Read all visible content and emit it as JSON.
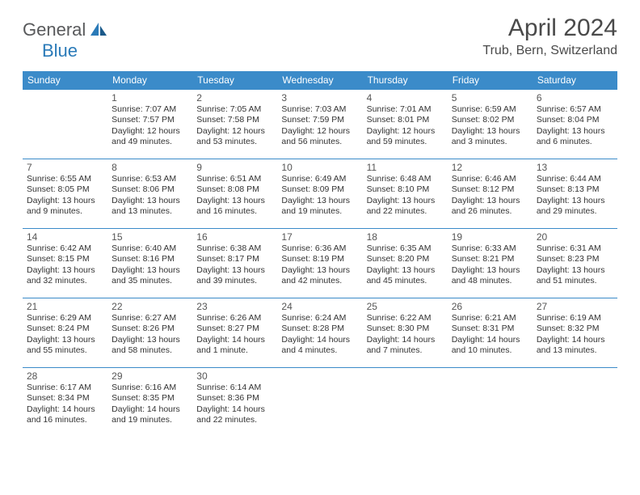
{
  "brand": {
    "part1": "General",
    "part2": "Blue"
  },
  "title": "April 2024",
  "location": "Trub, Bern, Switzerland",
  "colors": {
    "header_bg": "#3b8bc9",
    "header_text": "#ffffff",
    "border": "#3b8bc9",
    "text": "#333333",
    "title": "#4a4a4a",
    "brand_gray": "#58595b",
    "brand_blue": "#2a7ab8"
  },
  "day_headers": [
    "Sunday",
    "Monday",
    "Tuesday",
    "Wednesday",
    "Thursday",
    "Friday",
    "Saturday"
  ],
  "weeks": [
    [
      {
        "n": "",
        "lines": []
      },
      {
        "n": "1",
        "lines": [
          "Sunrise: 7:07 AM",
          "Sunset: 7:57 PM",
          "Daylight: 12 hours",
          "and 49 minutes."
        ]
      },
      {
        "n": "2",
        "lines": [
          "Sunrise: 7:05 AM",
          "Sunset: 7:58 PM",
          "Daylight: 12 hours",
          "and 53 minutes."
        ]
      },
      {
        "n": "3",
        "lines": [
          "Sunrise: 7:03 AM",
          "Sunset: 7:59 PM",
          "Daylight: 12 hours",
          "and 56 minutes."
        ]
      },
      {
        "n": "4",
        "lines": [
          "Sunrise: 7:01 AM",
          "Sunset: 8:01 PM",
          "Daylight: 12 hours",
          "and 59 minutes."
        ]
      },
      {
        "n": "5",
        "lines": [
          "Sunrise: 6:59 AM",
          "Sunset: 8:02 PM",
          "Daylight: 13 hours",
          "and 3 minutes."
        ]
      },
      {
        "n": "6",
        "lines": [
          "Sunrise: 6:57 AM",
          "Sunset: 8:04 PM",
          "Daylight: 13 hours",
          "and 6 minutes."
        ]
      }
    ],
    [
      {
        "n": "7",
        "lines": [
          "Sunrise: 6:55 AM",
          "Sunset: 8:05 PM",
          "Daylight: 13 hours",
          "and 9 minutes."
        ]
      },
      {
        "n": "8",
        "lines": [
          "Sunrise: 6:53 AM",
          "Sunset: 8:06 PM",
          "Daylight: 13 hours",
          "and 13 minutes."
        ]
      },
      {
        "n": "9",
        "lines": [
          "Sunrise: 6:51 AM",
          "Sunset: 8:08 PM",
          "Daylight: 13 hours",
          "and 16 minutes."
        ]
      },
      {
        "n": "10",
        "lines": [
          "Sunrise: 6:49 AM",
          "Sunset: 8:09 PM",
          "Daylight: 13 hours",
          "and 19 minutes."
        ]
      },
      {
        "n": "11",
        "lines": [
          "Sunrise: 6:48 AM",
          "Sunset: 8:10 PM",
          "Daylight: 13 hours",
          "and 22 minutes."
        ]
      },
      {
        "n": "12",
        "lines": [
          "Sunrise: 6:46 AM",
          "Sunset: 8:12 PM",
          "Daylight: 13 hours",
          "and 26 minutes."
        ]
      },
      {
        "n": "13",
        "lines": [
          "Sunrise: 6:44 AM",
          "Sunset: 8:13 PM",
          "Daylight: 13 hours",
          "and 29 minutes."
        ]
      }
    ],
    [
      {
        "n": "14",
        "lines": [
          "Sunrise: 6:42 AM",
          "Sunset: 8:15 PM",
          "Daylight: 13 hours",
          "and 32 minutes."
        ]
      },
      {
        "n": "15",
        "lines": [
          "Sunrise: 6:40 AM",
          "Sunset: 8:16 PM",
          "Daylight: 13 hours",
          "and 35 minutes."
        ]
      },
      {
        "n": "16",
        "lines": [
          "Sunrise: 6:38 AM",
          "Sunset: 8:17 PM",
          "Daylight: 13 hours",
          "and 39 minutes."
        ]
      },
      {
        "n": "17",
        "lines": [
          "Sunrise: 6:36 AM",
          "Sunset: 8:19 PM",
          "Daylight: 13 hours",
          "and 42 minutes."
        ]
      },
      {
        "n": "18",
        "lines": [
          "Sunrise: 6:35 AM",
          "Sunset: 8:20 PM",
          "Daylight: 13 hours",
          "and 45 minutes."
        ]
      },
      {
        "n": "19",
        "lines": [
          "Sunrise: 6:33 AM",
          "Sunset: 8:21 PM",
          "Daylight: 13 hours",
          "and 48 minutes."
        ]
      },
      {
        "n": "20",
        "lines": [
          "Sunrise: 6:31 AM",
          "Sunset: 8:23 PM",
          "Daylight: 13 hours",
          "and 51 minutes."
        ]
      }
    ],
    [
      {
        "n": "21",
        "lines": [
          "Sunrise: 6:29 AM",
          "Sunset: 8:24 PM",
          "Daylight: 13 hours",
          "and 55 minutes."
        ]
      },
      {
        "n": "22",
        "lines": [
          "Sunrise: 6:27 AM",
          "Sunset: 8:26 PM",
          "Daylight: 13 hours",
          "and 58 minutes."
        ]
      },
      {
        "n": "23",
        "lines": [
          "Sunrise: 6:26 AM",
          "Sunset: 8:27 PM",
          "Daylight: 14 hours",
          "and 1 minute."
        ]
      },
      {
        "n": "24",
        "lines": [
          "Sunrise: 6:24 AM",
          "Sunset: 8:28 PM",
          "Daylight: 14 hours",
          "and 4 minutes."
        ]
      },
      {
        "n": "25",
        "lines": [
          "Sunrise: 6:22 AM",
          "Sunset: 8:30 PM",
          "Daylight: 14 hours",
          "and 7 minutes."
        ]
      },
      {
        "n": "26",
        "lines": [
          "Sunrise: 6:21 AM",
          "Sunset: 8:31 PM",
          "Daylight: 14 hours",
          "and 10 minutes."
        ]
      },
      {
        "n": "27",
        "lines": [
          "Sunrise: 6:19 AM",
          "Sunset: 8:32 PM",
          "Daylight: 14 hours",
          "and 13 minutes."
        ]
      }
    ],
    [
      {
        "n": "28",
        "lines": [
          "Sunrise: 6:17 AM",
          "Sunset: 8:34 PM",
          "Daylight: 14 hours",
          "and 16 minutes."
        ]
      },
      {
        "n": "29",
        "lines": [
          "Sunrise: 6:16 AM",
          "Sunset: 8:35 PM",
          "Daylight: 14 hours",
          "and 19 minutes."
        ]
      },
      {
        "n": "30",
        "lines": [
          "Sunrise: 6:14 AM",
          "Sunset: 8:36 PM",
          "Daylight: 14 hours",
          "and 22 minutes."
        ]
      },
      {
        "n": "",
        "lines": []
      },
      {
        "n": "",
        "lines": []
      },
      {
        "n": "",
        "lines": []
      },
      {
        "n": "",
        "lines": []
      }
    ]
  ]
}
